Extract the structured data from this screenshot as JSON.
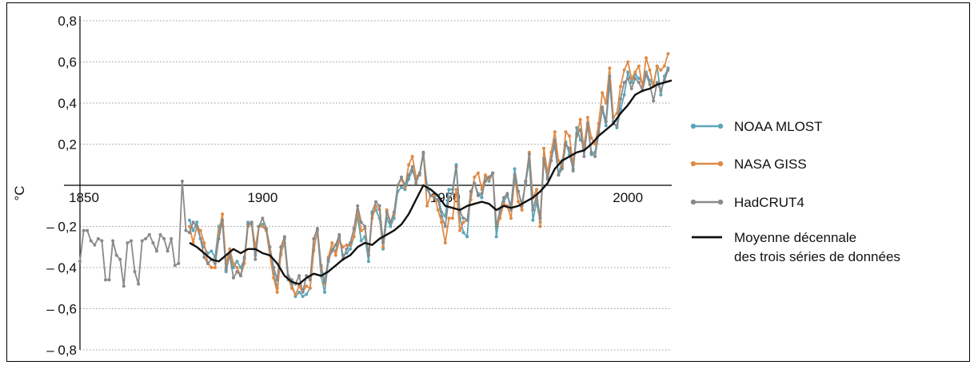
{
  "chart_data": {
    "type": "line",
    "title": "",
    "xlabel": "",
    "ylabel": "°C",
    "xlim": [
      1850,
      2012
    ],
    "ylim": [
      -0.8,
      0.8
    ],
    "x_ticks": [
      1850,
      1900,
      1950,
      2000
    ],
    "x_tick_labels": [
      "1850",
      "1900",
      "1950",
      "2000"
    ],
    "y_ticks": [
      0.8,
      0.6,
      0.4,
      0.2,
      -0.2,
      -0.4,
      -0.6,
      -0.8
    ],
    "y_tick_labels": [
      "0,8",
      "0,6",
      "0,4",
      "0,2",
      "– 0,2",
      "– 0,4",
      "– 0,6",
      "– 0,8"
    ],
    "grid": true,
    "legend_position": "right",
    "series": [
      {
        "name": "NOAA MLOST",
        "color": "#5aa6b8",
        "markers": true,
        "x_start": 1880,
        "values": [
          -0.17,
          -0.22,
          -0.18,
          -0.26,
          -0.3,
          -0.33,
          -0.32,
          -0.35,
          -0.2,
          -0.17,
          -0.42,
          -0.33,
          -0.4,
          -0.37,
          -0.4,
          -0.36,
          -0.18,
          -0.19,
          -0.34,
          -0.2,
          -0.19,
          -0.22,
          -0.34,
          -0.43,
          -0.5,
          -0.33,
          -0.28,
          -0.46,
          -0.48,
          -0.54,
          -0.52,
          -0.54,
          -0.53,
          -0.5,
          -0.31,
          -0.22,
          -0.44,
          -0.52,
          -0.37,
          -0.31,
          -0.32,
          -0.25,
          -0.34,
          -0.33,
          -0.31,
          -0.25,
          -0.15,
          -0.27,
          -0.25,
          -0.37,
          -0.14,
          -0.12,
          -0.16,
          -0.31,
          -0.16,
          -0.2,
          -0.16,
          -0.03,
          -0.01,
          -0.02,
          0.03,
          0.07,
          0.03,
          0.05,
          0.15,
          0.0,
          -0.05,
          -0.05,
          -0.05,
          -0.13,
          -0.15,
          -0.02,
          -0.02,
          0.1,
          -0.16,
          -0.23,
          -0.25,
          -0.03,
          0.01,
          -0.04,
          -0.06,
          0.04,
          0.02,
          0.06,
          -0.25,
          -0.13,
          -0.08,
          -0.05,
          -0.1,
          0.08,
          -0.03,
          -0.09,
          0.01,
          0.12,
          -0.17,
          -0.08,
          -0.18,
          0.12,
          0.04,
          0.14,
          0.19,
          0.05,
          0.12,
          0.21,
          0.15,
          0.08,
          0.28,
          0.22,
          0.2,
          0.3,
          0.15,
          0.16,
          0.26,
          0.37,
          0.29,
          0.5,
          0.31,
          0.28,
          0.37,
          0.44,
          0.55,
          0.5,
          0.54,
          0.52,
          0.5,
          0.55,
          0.51,
          0.49,
          0.58,
          0.44,
          0.53,
          0.57
        ]
      },
      {
        "name": "NASA GISS",
        "color": "#e08a45",
        "markers": true,
        "x_start": 1880,
        "values": [
          -0.2,
          -0.28,
          -0.2,
          -0.22,
          -0.28,
          -0.38,
          -0.4,
          -0.4,
          -0.23,
          -0.14,
          -0.38,
          -0.31,
          -0.38,
          -0.4,
          -0.44,
          -0.38,
          -0.2,
          -0.18,
          -0.3,
          -0.2,
          -0.2,
          -0.22,
          -0.34,
          -0.45,
          -0.52,
          -0.34,
          -0.26,
          -0.45,
          -0.5,
          -0.53,
          -0.49,
          -0.52,
          -0.49,
          -0.5,
          -0.32,
          -0.22,
          -0.4,
          -0.48,
          -0.35,
          -0.28,
          -0.34,
          -0.27,
          -0.3,
          -0.29,
          -0.29,
          -0.25,
          -0.12,
          -0.22,
          -0.21,
          -0.34,
          -0.16,
          -0.1,
          -0.12,
          -0.3,
          -0.12,
          -0.18,
          -0.14,
          0.0,
          0.03,
          -0.01,
          0.1,
          0.14,
          0.04,
          0.06,
          0.16,
          -0.1,
          -0.05,
          -0.05,
          -0.12,
          -0.18,
          -0.28,
          -0.16,
          -0.16,
          -0.02,
          -0.22,
          -0.18,
          -0.17,
          -0.07,
          0.04,
          0.06,
          -0.02,
          0.05,
          0.03,
          0.06,
          -0.2,
          -0.16,
          -0.09,
          -0.1,
          -0.16,
          0.04,
          -0.08,
          -0.12,
          0.02,
          0.16,
          -0.06,
          -0.02,
          -0.2,
          0.18,
          0.06,
          0.16,
          0.26,
          0.12,
          0.09,
          0.26,
          0.24,
          0.1,
          0.24,
          0.32,
          0.17,
          0.33,
          0.23,
          0.2,
          0.3,
          0.45,
          0.4,
          0.57,
          0.33,
          0.35,
          0.48,
          0.56,
          0.6,
          0.52,
          0.55,
          0.58,
          0.48,
          0.62,
          0.56,
          0.48,
          0.58,
          0.56,
          0.58,
          0.64
        ]
      },
      {
        "name": "HadCRUT4",
        "color": "#8a8a8a",
        "markers": true,
        "x_start": 1850,
        "values": [
          -0.37,
          -0.22,
          -0.22,
          -0.27,
          -0.29,
          -0.26,
          -0.27,
          -0.46,
          -0.46,
          -0.27,
          -0.34,
          -0.36,
          -0.49,
          -0.28,
          -0.27,
          -0.42,
          -0.48,
          -0.27,
          -0.26,
          -0.24,
          -0.28,
          -0.32,
          -0.24,
          -0.26,
          -0.32,
          -0.26,
          -0.39,
          -0.38,
          0.02,
          -0.22,
          -0.23,
          -0.18,
          -0.2,
          -0.26,
          -0.35,
          -0.38,
          -0.36,
          -0.38,
          -0.26,
          -0.17,
          -0.41,
          -0.34,
          -0.45,
          -0.42,
          -0.44,
          -0.35,
          -0.19,
          -0.18,
          -0.36,
          -0.2,
          -0.16,
          -0.21,
          -0.3,
          -0.4,
          -0.46,
          -0.3,
          -0.25,
          -0.44,
          -0.46,
          -0.48,
          -0.44,
          -0.52,
          -0.44,
          -0.46,
          -0.26,
          -0.21,
          -0.39,
          -0.47,
          -0.36,
          -0.32,
          -0.29,
          -0.24,
          -0.36,
          -0.31,
          -0.28,
          -0.21,
          -0.1,
          -0.18,
          -0.2,
          -0.34,
          -0.13,
          -0.08,
          -0.1,
          -0.28,
          -0.13,
          -0.18,
          -0.13,
          0.0,
          0.04,
          0.0,
          0.05,
          0.09,
          0.01,
          0.06,
          0.16,
          -0.02,
          -0.05,
          -0.06,
          -0.07,
          -0.15,
          -0.2,
          -0.06,
          -0.04,
          0.09,
          -0.13,
          -0.16,
          -0.17,
          -0.03,
          0.01,
          -0.05,
          -0.04,
          0.02,
          0.04,
          0.06,
          -0.2,
          -0.12,
          -0.06,
          -0.04,
          -0.12,
          0.05,
          -0.03,
          -0.1,
          0.02,
          0.15,
          -0.12,
          -0.05,
          -0.16,
          0.13,
          0.03,
          0.12,
          0.22,
          0.05,
          0.08,
          0.2,
          0.18,
          0.07,
          0.25,
          0.27,
          0.14,
          0.3,
          0.16,
          0.14,
          0.25,
          0.38,
          0.31,
          0.53,
          0.3,
          0.29,
          0.42,
          0.5,
          0.52,
          0.47,
          0.52,
          0.5,
          0.46,
          0.54,
          0.49,
          0.41,
          0.5,
          0.46,
          0.51,
          0.56
        ]
      },
      {
        "name": "Moyenne décennale des trois séries de données",
        "color": "#111111",
        "markers": false,
        "x": [
          1880,
          1882,
          1884,
          1886,
          1888,
          1890,
          1892,
          1894,
          1896,
          1898,
          1900,
          1902,
          1904,
          1906,
          1908,
          1910,
          1912,
          1914,
          1916,
          1918,
          1920,
          1922,
          1924,
          1926,
          1928,
          1930,
          1932,
          1934,
          1936,
          1938,
          1940,
          1942,
          1944,
          1946,
          1948,
          1950,
          1952,
          1954,
          1956,
          1958,
          1960,
          1962,
          1964,
          1966,
          1968,
          1970,
          1972,
          1974,
          1976,
          1978,
          1980,
          1982,
          1984,
          1986,
          1988,
          1990,
          1992,
          1994,
          1996,
          1998,
          2000,
          2002,
          2004,
          2006,
          2008,
          2010,
          2012
        ],
        "values": [
          -0.28,
          -0.3,
          -0.33,
          -0.36,
          -0.37,
          -0.34,
          -0.31,
          -0.33,
          -0.31,
          -0.31,
          -0.33,
          -0.34,
          -0.38,
          -0.44,
          -0.47,
          -0.48,
          -0.45,
          -0.43,
          -0.44,
          -0.42,
          -0.39,
          -0.36,
          -0.34,
          -0.3,
          -0.28,
          -0.29,
          -0.26,
          -0.24,
          -0.22,
          -0.19,
          -0.14,
          -0.07,
          0.0,
          -0.02,
          -0.05,
          -0.1,
          -0.11,
          -0.12,
          -0.1,
          -0.09,
          -0.08,
          -0.09,
          -0.12,
          -0.1,
          -0.11,
          -0.1,
          -0.08,
          -0.06,
          -0.03,
          0.01,
          0.08,
          0.12,
          0.14,
          0.16,
          0.17,
          0.2,
          0.24,
          0.27,
          0.3,
          0.35,
          0.39,
          0.44,
          0.46,
          0.47,
          0.49,
          0.5,
          0.51
        ]
      }
    ],
    "legend": [
      {
        "label_lines": [
          "NOAA MLOST"
        ],
        "color": "#5aa6b8",
        "markers": true
      },
      {
        "label_lines": [
          "NASA GISS"
        ],
        "color": "#e08a45",
        "markers": true
      },
      {
        "label_lines": [
          "HadCRUT4"
        ],
        "color": "#8a8a8a",
        "markers": true
      },
      {
        "label_lines": [
          "Moyenne décennale",
          "des trois séries de données"
        ],
        "color": "#111111",
        "markers": false
      }
    ]
  }
}
